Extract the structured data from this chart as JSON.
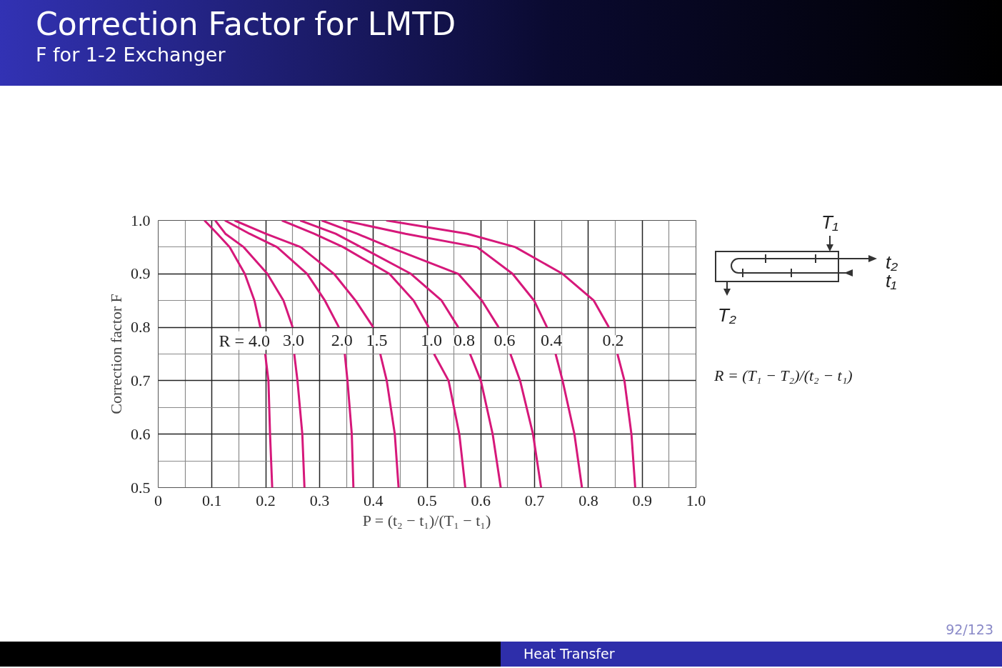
{
  "chart_data": {
    "type": "line",
    "title": "Correction Factor for LMTD",
    "subtitle": "F for 1-2 Exchanger",
    "xlabel": "P = (t₂ − t₁)/(T₁ − t₁)",
    "ylabel": "Correction factor F",
    "xlim": [
      0,
      1
    ],
    "ylim": [
      0.5,
      1
    ],
    "xticks": [
      0,
      {
        "value": 0.05,
        "label": null
      },
      0.1,
      {
        "value": 0.15,
        "label": null
      },
      0.2,
      {
        "value": 0.25,
        "label": null
      },
      0.3,
      {
        "value": 0.35,
        "label": null
      },
      0.4,
      {
        "value": 0.45,
        "label": null
      },
      0.5,
      {
        "value": 0.55,
        "label": null
      },
      0.6,
      {
        "value": 0.65,
        "label": null
      },
      0.7,
      {
        "value": 0.75,
        "label": null
      },
      0.8,
      {
        "value": 0.85,
        "label": null
      },
      0.9,
      {
        "value": 0.95,
        "label": null
      },
      {
        "value": 1,
        "label": "1.0"
      }
    ],
    "yticks": [
      0.5,
      {
        "value": 0.55,
        "label": null
      },
      0.6,
      {
        "value": 0.65,
        "label": null
      },
      0.7,
      {
        "value": 0.75,
        "label": null
      },
      0.8,
      {
        "value": 0.85,
        "label": null
      },
      0.9,
      {
        "value": 0.95,
        "label": null
      },
      {
        "value": 1,
        "label": "1.0"
      }
    ],
    "grid": true,
    "series": [
      {
        "name": "R = 4.0",
        "color": "#d6187a",
        "x": [
          0.086,
          0.11,
          0.133,
          0.161,
          0.179,
          0.19,
          null,
          0.199,
          0.205,
          0.208,
          0.212
        ],
        "values": [
          1.0,
          0.975,
          0.95,
          0.9,
          0.85,
          0.8,
          null,
          0.75,
          0.7,
          0.6,
          0.5
        ]
      },
      {
        "name": "3.0",
        "color": "#d6187a",
        "x": [
          0.106,
          0.125,
          0.159,
          0.203,
          0.233,
          0.25,
          null,
          0.253,
          0.259,
          0.268,
          0.272
        ],
        "values": [
          1.0,
          0.975,
          0.95,
          0.9,
          0.85,
          0.8,
          null,
          0.75,
          0.7,
          0.6,
          0.5
        ]
      },
      {
        "name": "2.0",
        "color": "#d6187a",
        "x": [
          0.124,
          0.17,
          0.221,
          0.277,
          0.31,
          0.336,
          null,
          0.347,
          0.352,
          0.36,
          0.363
        ],
        "values": [
          1.0,
          0.975,
          0.95,
          0.9,
          0.85,
          0.8,
          null,
          0.75,
          0.7,
          0.6,
          0.5
        ]
      },
      {
        "name": "1.5",
        "color": "#d6187a",
        "x": [
          0.142,
          0.2,
          0.265,
          0.327,
          0.367,
          0.4,
          null,
          0.413,
          0.425,
          0.44,
          0.447
        ],
        "values": [
          1.0,
          0.975,
          0.95,
          0.9,
          0.85,
          0.8,
          null,
          0.75,
          0.7,
          0.6,
          0.5
        ]
      },
      {
        "name": "1.0",
        "color": "#d6187a",
        "x": [
          0.23,
          0.29,
          0.344,
          0.43,
          0.475,
          0.503,
          null,
          0.513,
          0.54,
          0.56,
          0.571
        ],
        "values": [
          1.0,
          0.975,
          0.95,
          0.9,
          0.85,
          0.8,
          null,
          0.75,
          0.7,
          0.6,
          0.5
        ]
      },
      {
        "name": "0.8",
        "color": "#d6187a",
        "x": [
          0.264,
          0.33,
          0.377,
          0.47,
          0.527,
          0.558,
          null,
          0.58,
          0.6,
          0.622,
          0.637
        ],
        "values": [
          1.0,
          0.975,
          0.95,
          0.9,
          0.85,
          0.8,
          null,
          0.75,
          0.7,
          0.6,
          0.5
        ]
      },
      {
        "name": "0.6",
        "color": "#d6187a",
        "x": [
          0.304,
          0.37,
          0.43,
          0.558,
          0.602,
          0.633,
          null,
          0.655,
          0.673,
          0.697,
          0.712
        ],
        "values": [
          1.0,
          0.975,
          0.95,
          0.9,
          0.85,
          0.8,
          null,
          0.75,
          0.7,
          0.6,
          0.5
        ]
      },
      {
        "name": "0.4",
        "color": "#d6187a",
        "x": [
          0.344,
          0.46,
          0.593,
          0.659,
          0.699,
          0.723,
          null,
          0.739,
          0.752,
          0.774,
          0.788
        ],
        "values": [
          1.0,
          0.975,
          0.95,
          0.9,
          0.85,
          0.8,
          null,
          0.75,
          0.7,
          0.6,
          0.5
        ]
      },
      {
        "name": "0.2",
        "color": "#d6187a",
        "x": [
          0.424,
          0.575,
          0.664,
          0.752,
          0.81,
          0.838,
          null,
          0.854,
          0.867,
          0.88,
          0.887
        ],
        "values": [
          1.0,
          0.975,
          0.95,
          0.9,
          0.85,
          0.8,
          null,
          0.75,
          0.7,
          0.6,
          0.5
        ]
      }
    ],
    "annotations": [
      "R = (T₁ − T₂)/(t₂ − t₁)",
      "T₁",
      "t₂",
      "t₁",
      "T₂",
      "Heat Transfer",
      "92/123"
    ]
  }
}
